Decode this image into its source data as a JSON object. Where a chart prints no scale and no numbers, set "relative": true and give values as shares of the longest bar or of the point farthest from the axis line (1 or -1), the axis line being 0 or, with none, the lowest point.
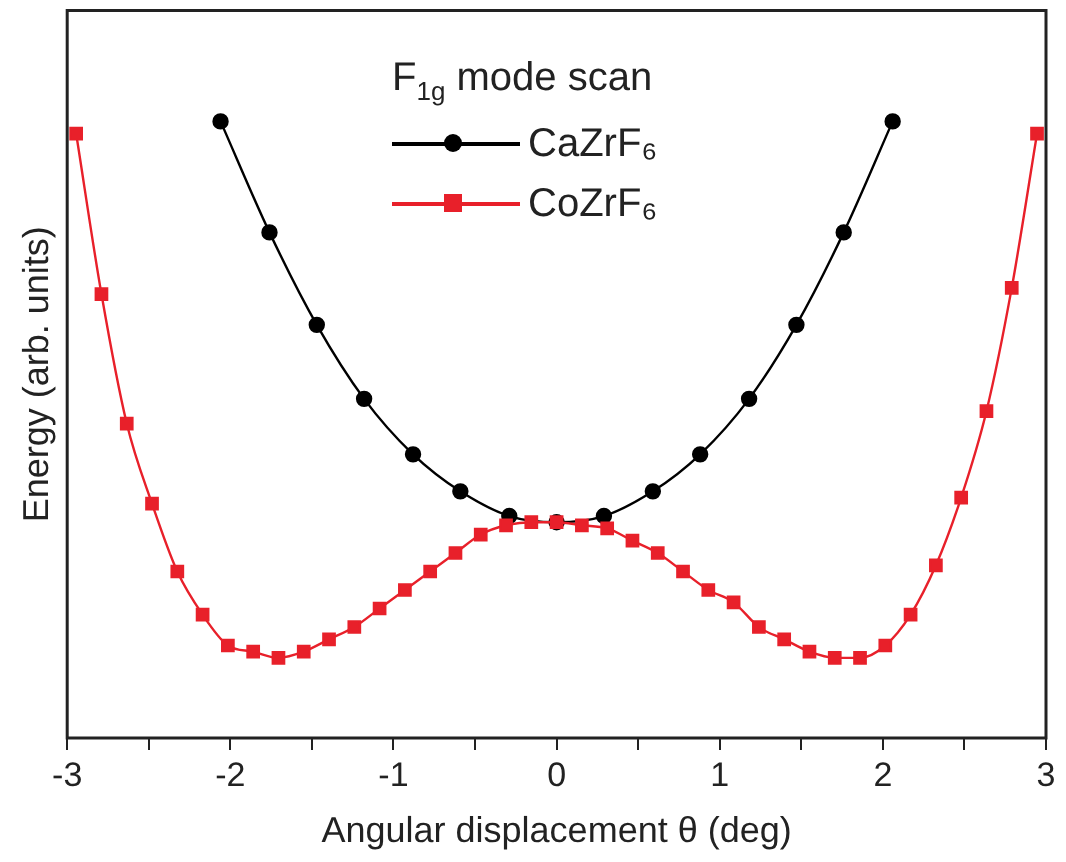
{
  "chart_data": {
    "type": "line",
    "xlabel": "Angular displacement θ (deg)",
    "ylabel": "Energy (arb. units)",
    "legend_title": "F$_{1g}$ mode scan",
    "relative": true,
    "xlim": [
      -3,
      3
    ],
    "xticks": [
      -3,
      {
        "value": -2.5,
        "label": null
      },
      -2,
      {
        "value": -1.5,
        "label": null
      },
      -1,
      {
        "value": -0.5,
        "label": null
      },
      0,
      {
        "value": 0.5,
        "label": null
      },
      1,
      {
        "value": 1.5,
        "label": null
      },
      2,
      {
        "value": 2.5,
        "label": null
      },
      3
    ],
    "tick_labels": "x",
    "legend": "top",
    "grid": false,
    "line_style": "solid",
    "series": [
      {
        "name": "CaZrF₆",
        "color": "#000000",
        "marker": "circle",
        "x": [
          -2.06,
          -1.76,
          -1.47,
          -1.18,
          -0.88,
          -0.59,
          -0.29,
          0,
          0.29,
          0.59,
          0.88,
          1.18,
          1.47,
          1.76,
          2.06
        ],
        "values": [
          1.0,
          0.82,
          0.67,
          0.55,
          0.46,
          0.4,
          0.36,
          0.35,
          0.36,
          0.4,
          0.46,
          0.55,
          0.67,
          0.82,
          1.0
        ]
      },
      {
        "name": "CoZrF₆",
        "color": "#e8202a",
        "marker": "square",
        "x": [
          -2.945,
          -2.79,
          -2.635,
          -2.48,
          -2.325,
          -2.17,
          -2.015,
          -1.86,
          -1.705,
          -1.55,
          -1.395,
          -1.24,
          -1.085,
          -0.93,
          -0.775,
          -0.62,
          -0.465,
          -0.31,
          -0.155,
          0,
          0.155,
          0.31,
          0.465,
          0.62,
          0.775,
          0.93,
          1.085,
          1.24,
          1.395,
          1.55,
          1.705,
          1.86,
          2.015,
          2.17,
          2.325,
          2.48,
          2.635,
          2.79,
          2.945
        ],
        "values": [
          0.98,
          0.72,
          0.51,
          0.38,
          0.27,
          0.2,
          0.15,
          0.14,
          0.13,
          0.14,
          0.16,
          0.18,
          0.21,
          0.24,
          0.27,
          0.3,
          0.33,
          0.345,
          0.35,
          0.35,
          0.345,
          0.34,
          0.32,
          0.3,
          0.27,
          0.24,
          0.22,
          0.18,
          0.16,
          0.14,
          0.13,
          0.13,
          0.15,
          0.2,
          0.28,
          0.39,
          0.53,
          0.73,
          0.98
        ]
      }
    ]
  }
}
